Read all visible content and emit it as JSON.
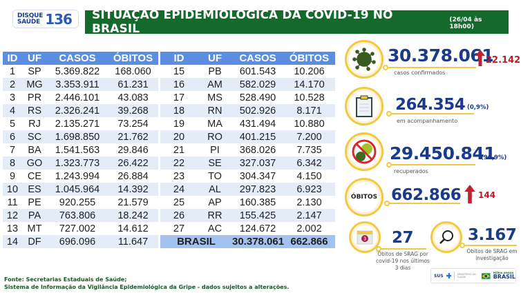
{
  "logo": {
    "line1": "DISQUE",
    "line2": "SAÚDE",
    "number": "136"
  },
  "header": {
    "title": "SITUAÇÃO EPIDEMIOLÓGICA DA COVID-19 NO BRASIL",
    "date": "(26/04 às 18h00)"
  },
  "table": {
    "columns": [
      "ID",
      "UF",
      "CASOS",
      "ÓBITOS"
    ],
    "left_rows": [
      {
        "id": "1",
        "uf": "SP",
        "casos": "5.369.822",
        "obitos": "168.060"
      },
      {
        "id": "2",
        "uf": "MG",
        "casos": "3.353.911",
        "obitos": "61.231"
      },
      {
        "id": "3",
        "uf": "PR",
        "casos": "2.446.101",
        "obitos": "43.083"
      },
      {
        "id": "4",
        "uf": "RS",
        "casos": "2.326.241",
        "obitos": "39.268"
      },
      {
        "id": "5",
        "uf": "RJ",
        "casos": "2.135.271",
        "obitos": "73.254"
      },
      {
        "id": "6",
        "uf": "SC",
        "casos": "1.698.850",
        "obitos": "21.762"
      },
      {
        "id": "7",
        "uf": "BA",
        "casos": "1.541.563",
        "obitos": "29.846"
      },
      {
        "id": "8",
        "uf": "GO",
        "casos": "1.323.773",
        "obitos": "26.422"
      },
      {
        "id": "9",
        "uf": "CE",
        "casos": "1.243.994",
        "obitos": "26.884"
      },
      {
        "id": "10",
        "uf": "ES",
        "casos": "1.045.964",
        "obitos": "14.392"
      },
      {
        "id": "11",
        "uf": "PE",
        "casos": "920.255",
        "obitos": "21.579"
      },
      {
        "id": "12",
        "uf": "PA",
        "casos": "763.806",
        "obitos": "18.242"
      },
      {
        "id": "13",
        "uf": "MT",
        "casos": "727.002",
        "obitos": "14.612"
      },
      {
        "id": "14",
        "uf": "DF",
        "casos": "696.096",
        "obitos": "11.647"
      }
    ],
    "right_rows": [
      {
        "id": "15",
        "uf": "PB",
        "casos": "601.543",
        "obitos": "10.206"
      },
      {
        "id": "16",
        "uf": "AM",
        "casos": "582.029",
        "obitos": "14.170"
      },
      {
        "id": "17",
        "uf": "MS",
        "casos": "528.490",
        "obitos": "10.528"
      },
      {
        "id": "18",
        "uf": "RN",
        "casos": "502.926",
        "obitos": "8.171"
      },
      {
        "id": "19",
        "uf": "MA",
        "casos": "431.494",
        "obitos": "10.880"
      },
      {
        "id": "20",
        "uf": "RO",
        "casos": "401.215",
        "obitos": "7.200"
      },
      {
        "id": "21",
        "uf": "PI",
        "casos": "368.026",
        "obitos": "7.735"
      },
      {
        "id": "22",
        "uf": "SE",
        "casos": "327.037",
        "obitos": "6.342"
      },
      {
        "id": "23",
        "uf": "TO",
        "casos": "304.347",
        "obitos": "4.150"
      },
      {
        "id": "24",
        "uf": "AL",
        "casos": "297.823",
        "obitos": "6.923"
      },
      {
        "id": "25",
        "uf": "AP",
        "casos": "160.385",
        "obitos": "2.130"
      },
      {
        "id": "26",
        "uf": "RR",
        "casos": "155.425",
        "obitos": "2.147"
      },
      {
        "id": "27",
        "uf": "AC",
        "casos": "124.672",
        "obitos": "2.002"
      }
    ],
    "total": {
      "label": "BRASIL",
      "casos": "30.378.061",
      "obitos": "662.866"
    }
  },
  "indicators": {
    "confirmed": {
      "icon": "virus-icon",
      "value": "30.378.061",
      "label": "casos confirmados",
      "delta": "22.142",
      "delta_icon": "arrow-up-icon"
    },
    "monitoring": {
      "icon": "clipboard-icon",
      "value": "264.354",
      "pct": "(0,9%)",
      "label": "em acompanhamento"
    },
    "recovered": {
      "icon": "no-virus-icon",
      "value": "29.450.841",
      "pct": "(96,9%)",
      "label": "recuperados"
    },
    "deaths": {
      "badge": "ÓBITOS",
      "value": "662.866",
      "delta": "144",
      "delta_icon": "arrow-up-icon"
    },
    "srag_recent": {
      "icon": "calendar-icon",
      "calendar_number": "3",
      "value": "27",
      "label": "Óbitos de SRAG por covid-19 nos últimos 3 dias"
    },
    "srag_investigation": {
      "icon": "magnifier-icon",
      "value": "3.167",
      "label": "Óbitos de SRAG em investigação"
    }
  },
  "colors": {
    "header_green": "#136a2b",
    "table_header_blue": "#5b8de0",
    "row_stripe": "#e4ecf8",
    "total_row": "#a4c2f0",
    "indicator_navy": "#1a3a8a",
    "ring_yellow": "#f3c843",
    "delta_red": "#b51e2b"
  },
  "footer": {
    "line1": "Fonte: Secretarias Estaduais de Saúde;",
    "line2": "Sistema de Informação da Vigilância Epidemiológica da Gripe - dados sujeitos a alterações."
  },
  "gov_logos": {
    "sus": "SUS",
    "ministerio": "MINISTÉRIO DA SAÚDE",
    "patria": "PÁTRIA AMADA",
    "brasil": "BRASIL"
  }
}
